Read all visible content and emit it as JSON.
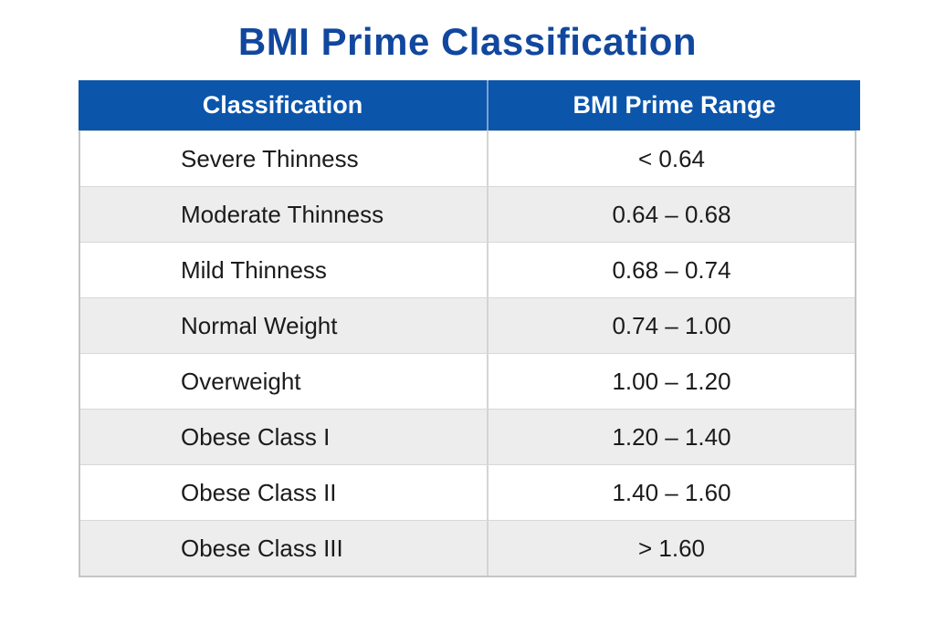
{
  "chart_data": {
    "type": "table",
    "title": "BMI Prime Classification",
    "columns": [
      "Classification",
      "BMI Prime Range"
    ],
    "rows": [
      [
        "Severe Thinness",
        "< 0.64"
      ],
      [
        "Moderate Thinness",
        "0.64 – 0.68"
      ],
      [
        "Mild Thinness",
        "0.68 – 0.74"
      ],
      [
        "Normal Weight",
        "0.74 – 1.00"
      ],
      [
        "Overweight",
        "1.00 – 1.20"
      ],
      [
        "Obese Class I",
        "1.20 – 1.40"
      ],
      [
        "Obese Class II",
        "1.40 – 1.60"
      ],
      [
        "Obese Class III",
        "> 1.60"
      ]
    ],
    "layout": {
      "zebra_striping": true,
      "header_position": "top"
    }
  },
  "colors": {
    "title_text": "#11479e",
    "header_bg": "#0b55ab",
    "header_text": "#ffffff",
    "row_bg": "#ffffff",
    "row_alt_bg": "#ededee",
    "row_text": "#1b1b1b",
    "border": "#c5c5c5"
  }
}
